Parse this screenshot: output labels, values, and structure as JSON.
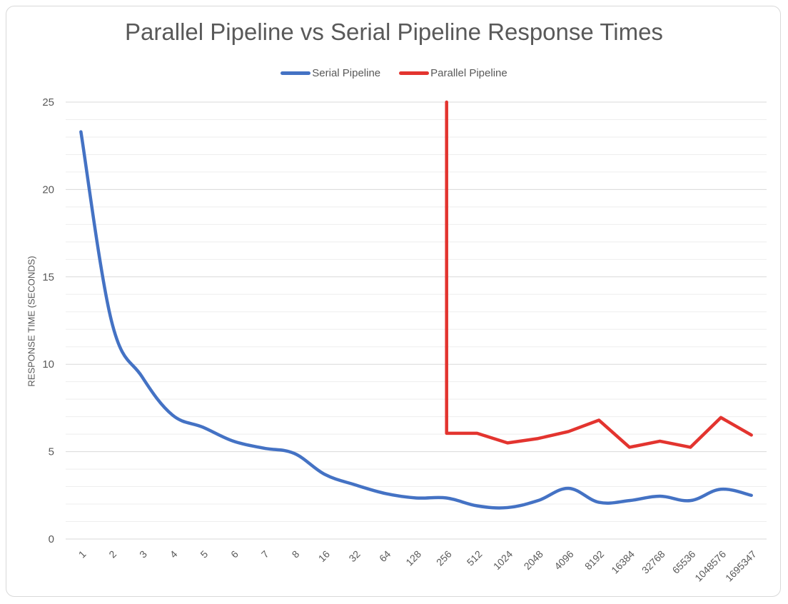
{
  "chart_data": {
    "type": "line",
    "title": "Parallel Pipeline vs Serial Pipeline Response Times",
    "xlabel": "",
    "ylabel": "RESPONSE TIME (SECONDS)",
    "ylim": [
      0,
      25
    ],
    "yticks": [
      0,
      5,
      10,
      15,
      20,
      25
    ],
    "grid": true,
    "legend_position": "top",
    "categories": [
      "1",
      "2",
      "3",
      "4",
      "5",
      "6",
      "7",
      "8",
      "16",
      "32",
      "64",
      "128",
      "256",
      "512",
      "1024",
      "2048",
      "4096",
      "8192",
      "16384",
      "32768",
      "65536",
      "1048576",
      "1695347"
    ],
    "series": [
      {
        "name": "Serial Pipeline",
        "color": "#4472c4",
        "values": [
          23.3,
          12.5,
          9.3,
          7.1,
          6.4,
          5.6,
          5.2,
          4.9,
          3.7,
          3.1,
          2.6,
          2.35,
          2.35,
          1.9,
          1.8,
          2.2,
          2.9,
          2.1,
          2.2,
          2.45,
          2.2,
          2.85,
          2.5
        ]
      },
      {
        "name": "Parallel Pipeline",
        "color": "#e3342f",
        "values": [
          null,
          null,
          null,
          null,
          null,
          null,
          null,
          null,
          null,
          null,
          null,
          null,
          25,
          6.05,
          5.5,
          5.75,
          6.15,
          6.8,
          5.25,
          5.6,
          5.25,
          6.95,
          5.95
        ],
        "note_values": [
          null,
          null,
          null,
          null,
          null,
          null,
          null,
          null,
          null,
          null,
          null,
          null,
          25,
          6.05,
          5.5,
          5.75,
          6.15,
          6.8,
          5.25,
          5.6,
          5.25,
          6.95,
          5.95
        ]
      }
    ]
  }
}
